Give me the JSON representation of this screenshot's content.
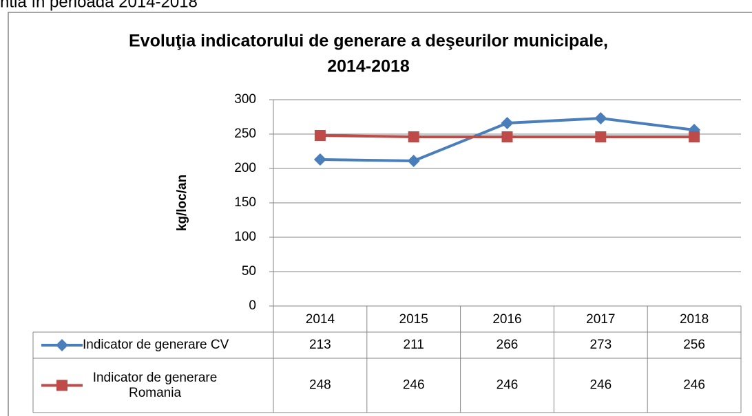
{
  "caption": "ntia în perioada 2014-2018",
  "chart_data": {
    "type": "line",
    "title": [
      "Evoluţia indicatorului de generare a deşeurilor municipale,",
      "2014-2018"
    ],
    "y_label": "kg/loc/an",
    "categories": [
      "2014",
      "2015",
      "2016",
      "2017",
      "2018"
    ],
    "series": [
      {
        "name": "Indicator de generare CV",
        "color": "#4a7ebb",
        "marker": "diamond",
        "values": [
          213,
          211,
          266,
          273,
          256
        ]
      },
      {
        "name": "Indicator de generare Romania",
        "color": "#be4b48",
        "marker": "square",
        "values": [
          248,
          246,
          246,
          246,
          246
        ]
      }
    ],
    "ylim": [
      0,
      300
    ],
    "yticks": [
      0,
      50,
      100,
      150,
      200,
      250,
      300
    ],
    "grid": true,
    "data_table": true
  }
}
